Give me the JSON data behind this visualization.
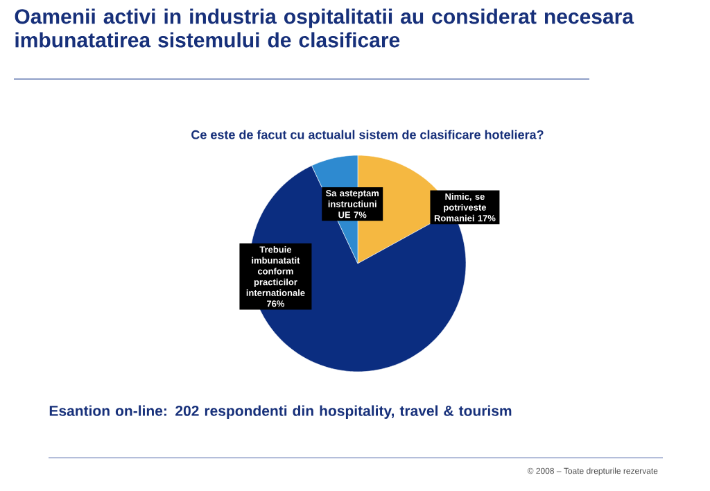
{
  "chart_data": {
    "type": "pie",
    "title": "Oamenii activi in industria ospitalitatii au considerat necesara imbunatatirea sistemului de clasificare",
    "subtitle": "Ce este de facut cu actualul sistem de clasificare hoteliera?",
    "categories": [
      "Nimic, se potriveste Romaniei",
      "Trebuie imbunatatit conform practicilor internationale",
      "Sa asteptam instructiuni UE"
    ],
    "values": [
      17,
      76,
      7
    ],
    "value_labels": [
      "17%",
      "76%",
      "7%"
    ],
    "colors": [
      "#f5b841",
      "#0b2d80",
      "#2e8ad0"
    ],
    "annotations": [
      "Esantion on-line: 202 respondenti din hospitality, travel & tourism",
      "© 2008 – Toate drepturile rezervate"
    ]
  }
}
